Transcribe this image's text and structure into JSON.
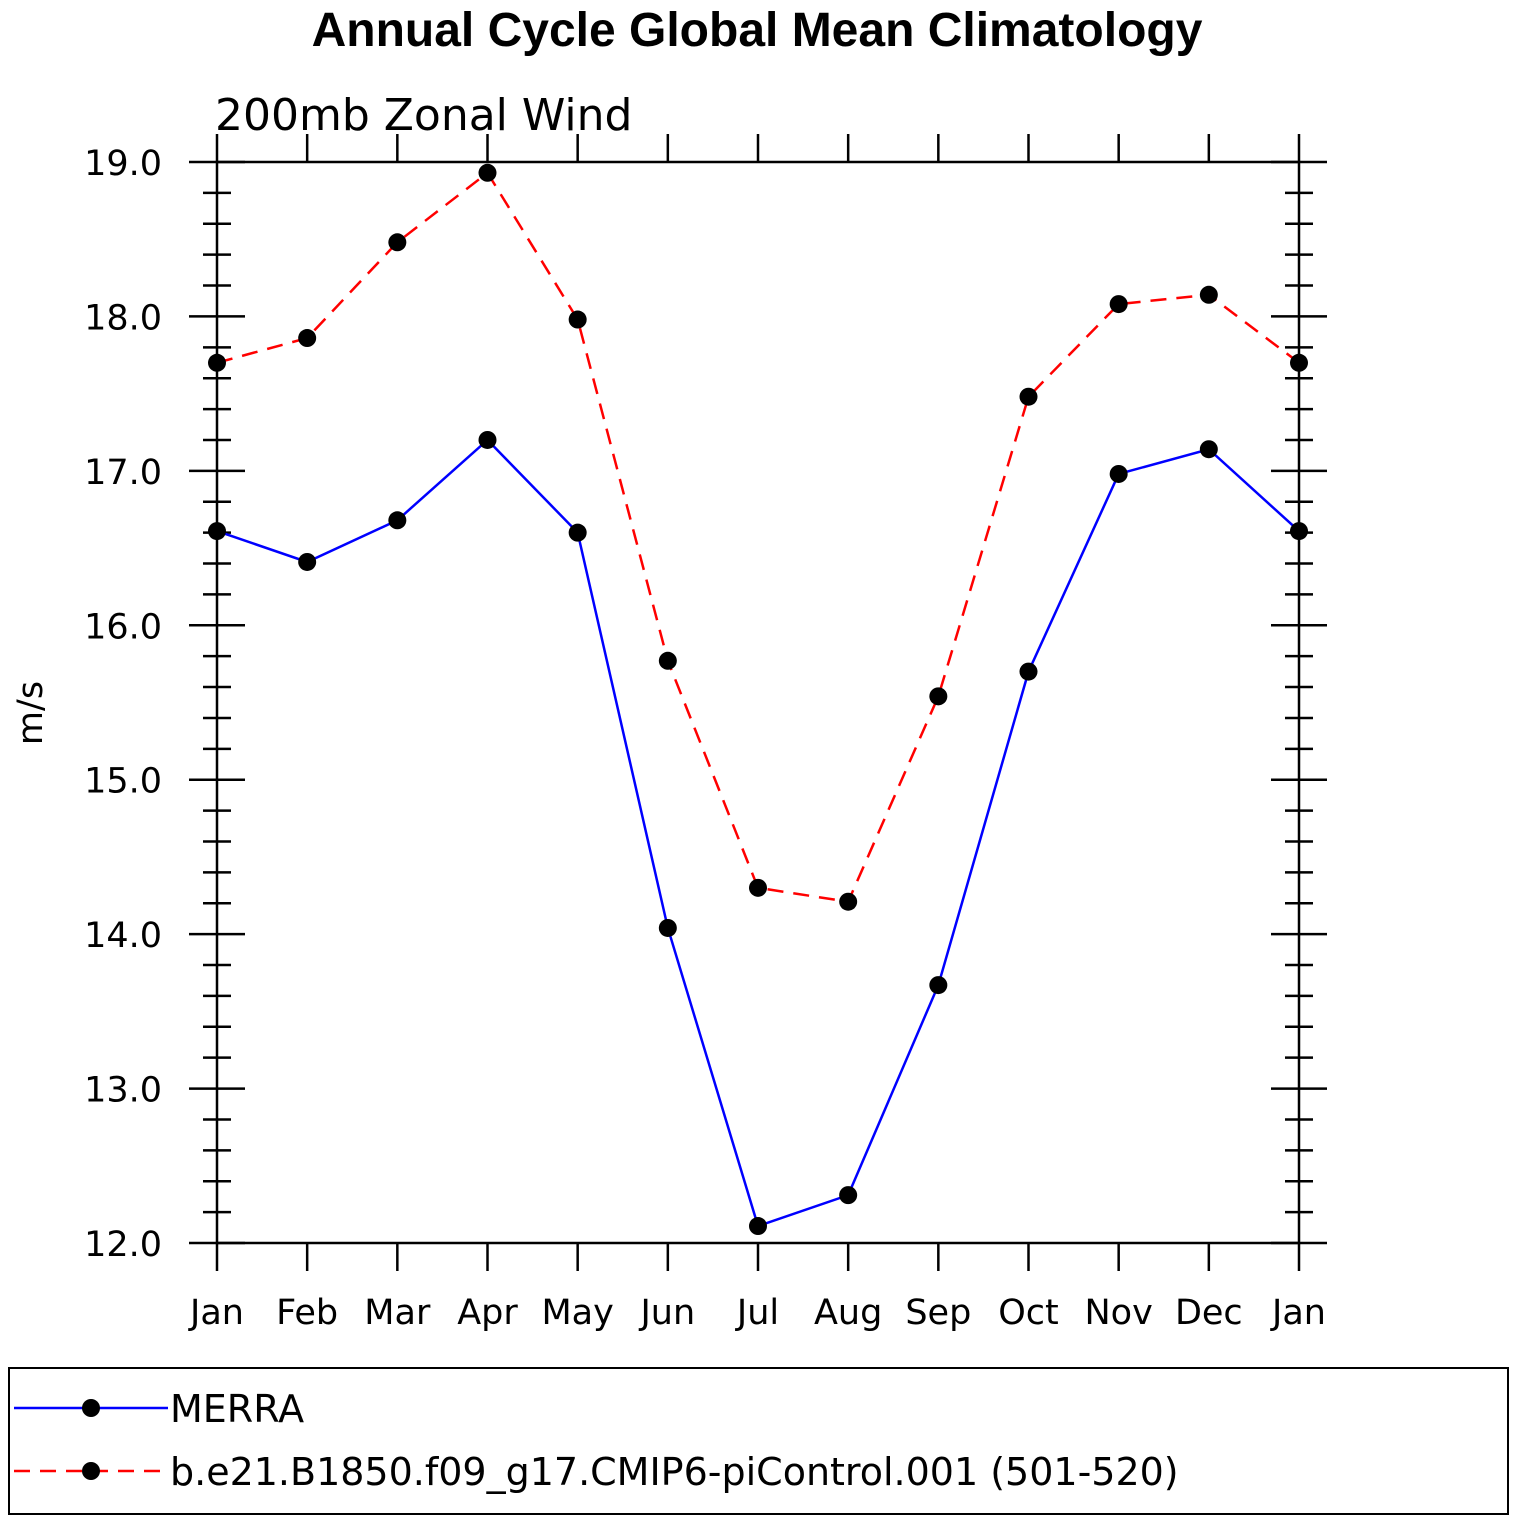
{
  "chart_data": {
    "type": "line",
    "title": "Annual Cycle Global Mean Climatology",
    "subtitle": "200mb Zonal Wind",
    "xlabel": "",
    "ylabel": "m/s",
    "ylim": [
      12.0,
      19.0
    ],
    "yticks": [
      12.0,
      13.0,
      14.0,
      15.0,
      16.0,
      17.0,
      18.0,
      19.0
    ],
    "ytick_labels": [
      "12.0",
      "13.0",
      "14.0",
      "15.0",
      "16.0",
      "17.0",
      "18.0",
      "19.0"
    ],
    "categories": [
      "Jan",
      "Feb",
      "Mar",
      "Apr",
      "May",
      "Jun",
      "Jul",
      "Aug",
      "Sep",
      "Oct",
      "Nov",
      "Dec",
      "Jan"
    ],
    "series": [
      {
        "name": "MERRA",
        "color": "#0000ff",
        "dash": "solid",
        "marker": "filled-circle",
        "values": [
          16.61,
          16.41,
          16.68,
          17.2,
          16.6,
          14.04,
          12.11,
          12.31,
          13.67,
          15.7,
          16.98,
          17.14,
          16.61
        ]
      },
      {
        "name": "b.e21.B1850.f09_g17.CMIP6-piControl.001 (501-520)",
        "color": "#ff0000",
        "dash": "dashed",
        "marker": "filled-circle",
        "values": [
          17.7,
          17.86,
          18.48,
          18.93,
          17.98,
          15.77,
          14.3,
          14.21,
          15.54,
          17.48,
          18.08,
          18.14,
          17.7
        ]
      }
    ],
    "legend": {
      "placement": "bottom"
    },
    "grid": false
  }
}
